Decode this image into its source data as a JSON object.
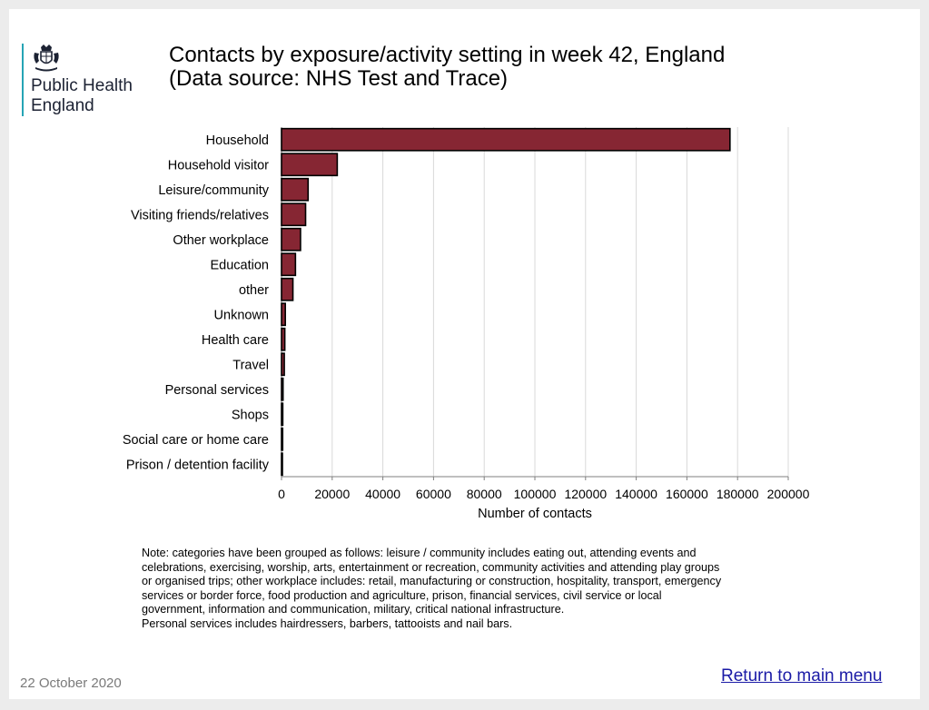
{
  "logo": {
    "line1": "Public Health",
    "line2": "England",
    "crest_icon": "royal-coat-of-arms-icon"
  },
  "title": {
    "line1": "Contacts by exposure/activity setting in week 42, England",
    "line2": "(Data source: NHS Test and Trace)"
  },
  "chart_data": {
    "type": "bar",
    "orientation": "horizontal",
    "categories": [
      "Household",
      "Household visitor",
      "Leisure/community",
      "Visiting friends/relatives",
      "Other workplace",
      "Education",
      "other",
      "Unknown",
      "Health care",
      "Travel",
      "Personal services",
      "Shops",
      "Social care or home care",
      "Prison / detention facility"
    ],
    "values": [
      177000,
      22000,
      10500,
      9500,
      7500,
      5500,
      4500,
      1500,
      1300,
      1100,
      600,
      500,
      450,
      200
    ],
    "xlabel": "Number of contacts",
    "ylabel": "",
    "xlim": [
      0,
      200000
    ],
    "xticks": [
      0,
      20000,
      40000,
      60000,
      80000,
      100000,
      120000,
      140000,
      160000,
      180000,
      200000
    ],
    "grid": "vertical",
    "bar_color": "#862633",
    "bar_edge_color": "#000000"
  },
  "note": {
    "line1": "Note: categories have been grouped as follows: leisure / community includes eating out, attending events and",
    "line2": "celebrations, exercising, worship, arts, entertainment or recreation, community activities and attending play groups",
    "line3": "or organised trips; other workplace includes: retail, manufacturing or construction, hospitality, transport, emergency",
    "line4": "services or border force, food production and agriculture, prison, financial services, civil service or local",
    "line5": "government, information and communication, military, critical national infrastructure.",
    "line6": "Personal services includes hairdressers, barbers, tattooists and nail bars."
  },
  "footer": {
    "date": "22 October 2020",
    "return_link": "Return to main menu"
  }
}
